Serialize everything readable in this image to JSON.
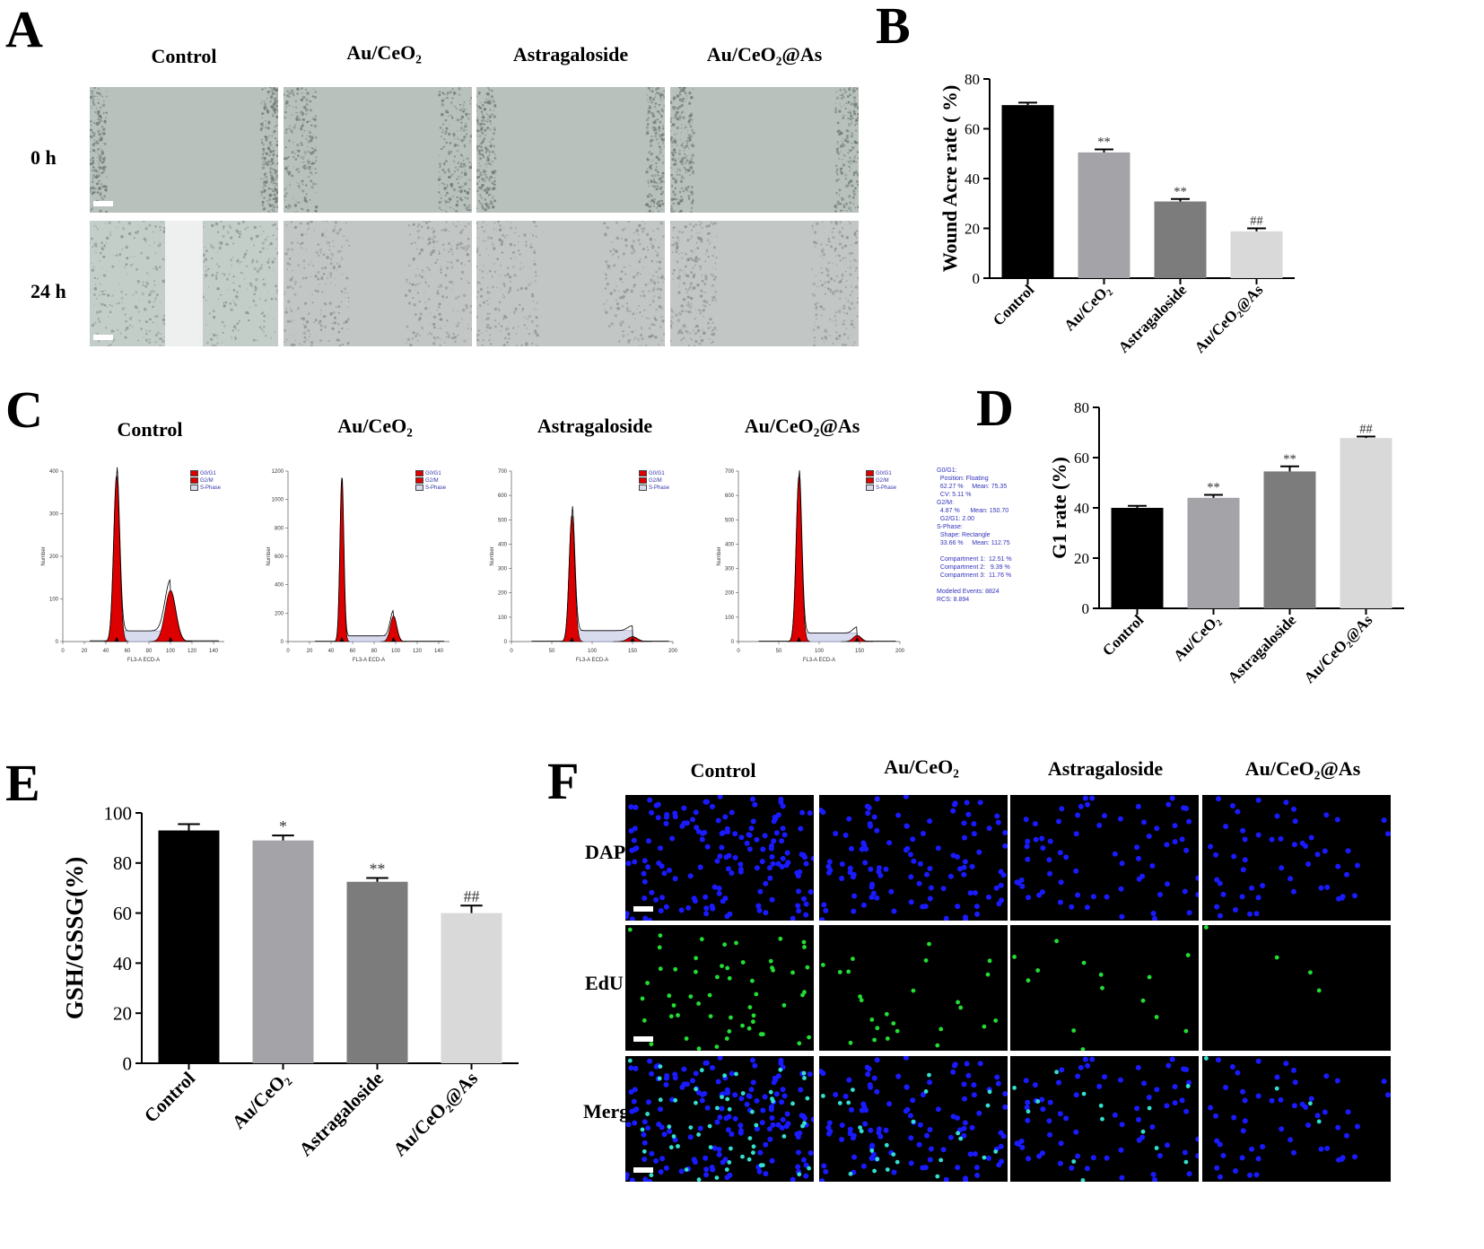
{
  "panels": {
    "A": {
      "letter": "A",
      "columns": [
        "Control",
        "Au/CeO₂",
        "Astragaloside",
        "Au/CeO₂@As"
      ],
      "rows": [
        "0 h",
        "24 h"
      ]
    },
    "B": {
      "letter": "B"
    },
    "C": {
      "letter": "C",
      "columns": [
        "Control",
        "Au/CeO₂",
        "Astragaloside",
        "Au/CeO₂@As"
      ],
      "x_label": "FL3-A ECD-A",
      "y_label": "Number",
      "legend": [
        "G0/G1",
        "G2/M",
        "S-Phase"
      ],
      "stats": "G0/G1:\n  Position: Floating\n  62.27 %     Mean: 75.35\n  CV: 5.11 %\nG2/M:\n  4.87 %      Mean: 150.70\n  G2/G1: 2.00\nS-Phase:\n  Shape: Rectangle\n  33.66 %     Mean: 112.75\n\n  Compartment 1:  12.51 %\n  Compartment 2:   9.39 %\n  Compartment 3:  11.76 %\n\nModeled Events: 8824\nRCS: 8.894"
    },
    "D": {
      "letter": "D"
    },
    "E": {
      "letter": "E"
    },
    "F": {
      "letter": "F",
      "columns": [
        "Control",
        "Au/CeO₂",
        "Astragaloside",
        "Au/CeO₂@As"
      ],
      "rows": [
        "DAPI",
        "EdU",
        "Merge"
      ]
    }
  },
  "colors": {
    "bars": [
      "#000000",
      "#a3a3a8",
      "#7c7c7c",
      "#d9d9d9"
    ],
    "photo_bg": "#b9c2bc",
    "hist_fill": "#dd0000",
    "dapi": "#1a1aff",
    "edu": "#22dd33"
  },
  "chart_data": [
    {
      "id": "B",
      "type": "bar",
      "categories": [
        "Control",
        "Au/CeO₂",
        "Astragaloside",
        "Au/CeO₂@As"
      ],
      "values": [
        69.5,
        50.5,
        30.8,
        18.8
      ],
      "errors": [
        1.0,
        1.2,
        1.0,
        1.2
      ],
      "annotations": [
        "",
        "**",
        "**",
        "##"
      ],
      "ylabel": "Wound Acre rate ( %)",
      "ylim": [
        0,
        80
      ],
      "yticks": [
        0,
        20,
        40,
        60,
        80
      ]
    },
    {
      "id": "D",
      "type": "bar",
      "categories": [
        "Control",
        "Au/CeO₂",
        "Astragaloside",
        "Au/CeO₂@As"
      ],
      "values": [
        40.0,
        44.0,
        54.5,
        67.8
      ],
      "errors": [
        0.8,
        1.2,
        2.0,
        0.6
      ],
      "annotations": [
        "",
        "**",
        "**",
        "##"
      ],
      "ylabel": "G1 rate (%)",
      "ylim": [
        0,
        80
      ],
      "yticks": [
        0,
        20,
        40,
        60,
        80
      ]
    },
    {
      "id": "E",
      "type": "bar",
      "categories": [
        "Control",
        "Au/CeO₂",
        "Astragaloside",
        "Au/CeO₂@As"
      ],
      "values": [
        93.0,
        89.0,
        72.5,
        60.0
      ],
      "errors": [
        2.5,
        2.0,
        1.5,
        3.0
      ],
      "annotations": [
        "",
        "*",
        "**",
        "##"
      ],
      "ylabel": "GSH/GSSG(%)",
      "ylim": [
        0,
        100
      ],
      "yticks": [
        0,
        20,
        40,
        60,
        80,
        100
      ]
    },
    {
      "id": "C",
      "type": "area",
      "x_label": "FL3-A ECD-A",
      "y_label": "Number",
      "histograms": [
        {
          "xlim": [
            0,
            150
          ],
          "xticks": [
            0,
            20,
            40,
            60,
            80,
            100,
            120,
            140
          ],
          "ylim": [
            0,
            400
          ],
          "yticks": [
            0,
            100,
            200,
            300,
            400
          ],
          "g1_mean": 50,
          "g1_peak": 390,
          "g1_sd": 2.8,
          "g2_mean": 100,
          "g2_peak": 120,
          "g2_sd": 5,
          "s_level": 25
        },
        {
          "xlim": [
            0,
            150
          ],
          "xticks": [
            0,
            20,
            40,
            60,
            80,
            100,
            120,
            140
          ],
          "ylim": [
            0,
            1200
          ],
          "yticks": [
            0,
            200,
            400,
            600,
            800,
            1000,
            1200
          ],
          "g1_mean": 50,
          "g1_peak": 1150,
          "g1_sd": 1.8,
          "g2_mean": 98,
          "g2_peak": 180,
          "g2_sd": 3,
          "s_level": 40
        },
        {
          "xlim": [
            0,
            200
          ],
          "xticks": [
            0,
            50,
            100,
            150,
            200
          ],
          "ylim": [
            0,
            700
          ],
          "yticks": [
            0,
            100,
            200,
            300,
            400,
            500,
            600,
            700
          ],
          "g1_mean": 75,
          "g1_peak": 520,
          "g1_sd": 3.5,
          "g2_mean": 150,
          "g2_peak": 20,
          "g2_sd": 6,
          "s_level": 45
        },
        {
          "xlim": [
            0,
            200
          ],
          "xticks": [
            0,
            50,
            100,
            150,
            200
          ],
          "ylim": [
            0,
            700
          ],
          "yticks": [
            0,
            100,
            200,
            300,
            400,
            500,
            600,
            700
          ],
          "g1_mean": 75,
          "g1_peak": 680,
          "g1_sd": 3.5,
          "g2_mean": 147,
          "g2_peak": 25,
          "g2_sd": 5,
          "s_level": 35
        }
      ]
    }
  ]
}
